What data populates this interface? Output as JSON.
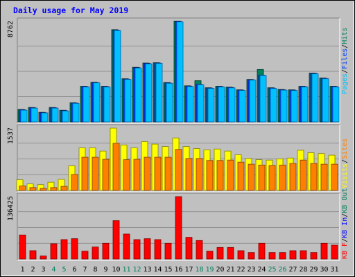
{
  "title": "Daily usage for May 2019",
  "colors": {
    "background": "#c0c0c0",
    "title": "#0000ff",
    "pages": "#00c0ff",
    "files": "#0040ff",
    "hits": "#00805c",
    "visits": "#ffff00",
    "sites": "#ff8000",
    "kbin": "#0000ff",
    "kbout": "#00805c",
    "kbf": "#ff0000",
    "weekday_label": "#000000",
    "weekend_label": "#00805c"
  },
  "chart_data": [
    {
      "type": "bar",
      "panel": "top",
      "ymax_label": "8762",
      "ylim": [
        0,
        8762
      ],
      "legend": [
        {
          "text": "Pages",
          "color": "#00c0ff"
        },
        {
          "text": "Files",
          "color": "#0040ff"
        },
        {
          "text": "Hits",
          "color": "#00805c"
        }
      ],
      "categories": [
        "1",
        "2",
        "3",
        "4",
        "5",
        "6",
        "7",
        "8",
        "9",
        "10",
        "11",
        "12",
        "13",
        "14",
        "15",
        "16",
        "17",
        "18",
        "19",
        "20",
        "21",
        "22",
        "23",
        "24",
        "25",
        "26",
        "27",
        "28",
        "29",
        "30",
        "31"
      ],
      "series": [
        {
          "name": "Hits",
          "values": [
            1080,
            1250,
            830,
            1250,
            1010,
            1660,
            3090,
            3440,
            3090,
            7990,
            3740,
            4730,
            5100,
            5130,
            3410,
            8740,
            3130,
            3570,
            2960,
            3090,
            3010,
            2780,
            3680,
            4540,
            2960,
            2810,
            2780,
            3090,
            4230,
            3800,
            3090
          ]
        },
        {
          "name": "Files",
          "values": [
            1050,
            1220,
            800,
            1220,
            980,
            1630,
            3060,
            3410,
            3060,
            7960,
            3710,
            4700,
            5070,
            5100,
            3380,
            8710,
            3100,
            3250,
            2930,
            3060,
            2980,
            2750,
            3650,
            4050,
            2930,
            2780,
            2750,
            3060,
            4200,
            3770,
            3060
          ]
        },
        {
          "name": "Pages",
          "values": [
            1010,
            1190,
            780,
            1190,
            950,
            1600,
            3020,
            3380,
            3020,
            7920,
            3680,
            4670,
            5030,
            5070,
            3340,
            8660,
            3060,
            3220,
            2900,
            3020,
            2950,
            2720,
            3620,
            4020,
            2900,
            2750,
            2720,
            3020,
            4160,
            3740,
            3020
          ]
        }
      ]
    },
    {
      "type": "bar",
      "panel": "middle",
      "ymax_label": "1537",
      "ylim": [
        0,
        1537
      ],
      "legend": [
        {
          "text": "Visits",
          "color": "#ffff00"
        },
        {
          "text": "Sites",
          "color": "#ff8000"
        }
      ],
      "categories": [
        "1",
        "2",
        "3",
        "4",
        "5",
        "6",
        "7",
        "8",
        "9",
        "10",
        "11",
        "12",
        "13",
        "14",
        "15",
        "16",
        "17",
        "18",
        "19",
        "20",
        "21",
        "22",
        "23",
        "24",
        "25",
        "26",
        "27",
        "28",
        "29",
        "30",
        "31"
      ],
      "series": [
        {
          "name": "Visits",
          "values": [
            260,
            160,
            140,
            200,
            270,
            600,
            1040,
            1040,
            960,
            1520,
            1110,
            1040,
            1190,
            1130,
            1070,
            1280,
            1070,
            1020,
            990,
            1010,
            960,
            870,
            780,
            750,
            740,
            770,
            790,
            980,
            920,
            900,
            860
          ]
        },
        {
          "name": "Sites",
          "values": [
            110,
            70,
            50,
            70,
            100,
            390,
            810,
            810,
            760,
            1150,
            750,
            760,
            810,
            810,
            810,
            1000,
            780,
            780,
            730,
            730,
            740,
            690,
            640,
            620,
            610,
            620,
            660,
            740,
            660,
            640,
            640
          ]
        }
      ]
    },
    {
      "type": "bar",
      "panel": "bottom",
      "ymax_label": "136425",
      "ylim": [
        0,
        136425
      ],
      "legend": [
        {
          "text": "KB F",
          "color": "#ff0000"
        },
        {
          "text": "KB In",
          "color": "#0000ff"
        },
        {
          "text": "KB Out",
          "color": "#00805c"
        }
      ],
      "categories": [
        "1",
        "2",
        "3",
        "4",
        "5",
        "6",
        "7",
        "8",
        "9",
        "10",
        "11",
        "12",
        "13",
        "14",
        "15",
        "16",
        "17",
        "18",
        "19",
        "20",
        "21",
        "22",
        "23",
        "24",
        "25",
        "26",
        "27",
        "28",
        "29",
        "30",
        "31"
      ],
      "series": [
        {
          "name": "KB F",
          "values": [
            52000,
            18000,
            6500,
            33000,
            42000,
            44000,
            17000,
            26000,
            34000,
            83000,
            54000,
            42000,
            44000,
            42000,
            34000,
            135000,
            47000,
            40000,
            17000,
            25000,
            25000,
            18000,
            14000,
            34000,
            14000,
            14000,
            18000,
            18000,
            14000,
            34000,
            30000
          ]
        }
      ]
    }
  ]
}
